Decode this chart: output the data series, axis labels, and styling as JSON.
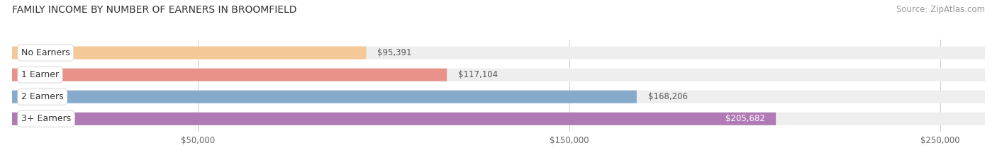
{
  "title": "FAMILY INCOME BY NUMBER OF EARNERS IN BROOMFIELD",
  "source": "Source: ZipAtlas.com",
  "categories": [
    "No Earners",
    "1 Earner",
    "2 Earners",
    "3+ Earners"
  ],
  "values": [
    95391,
    117104,
    168206,
    205682
  ],
  "bar_colors": [
    "#f5c897",
    "#e8928a",
    "#85aacc",
    "#b07ab5"
  ],
  "bg_color": "#eeeeee",
  "value_labels": [
    "$95,391",
    "$117,104",
    "$168,206",
    "$205,682"
  ],
  "label_inside": [
    false,
    false,
    false,
    true
  ],
  "xmin": 0,
  "xmax": 262000,
  "xticks": [
    50000,
    150000,
    250000
  ],
  "xticklabels": [
    "$50,000",
    "$150,000",
    "$250,000"
  ],
  "title_fontsize": 10,
  "source_fontsize": 8.5,
  "bar_label_fontsize": 8.5,
  "category_fontsize": 9
}
